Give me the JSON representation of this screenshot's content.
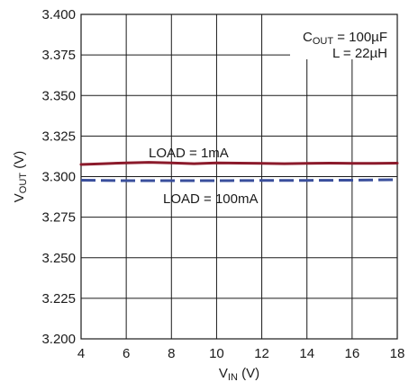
{
  "chart_data": {
    "type": "line",
    "title": "",
    "xlabel": {
      "main": "V",
      "sub": "IN",
      "unit": " (V)"
    },
    "ylabel": {
      "main": "V",
      "sub": "OUT",
      "unit": " (V)"
    },
    "xlim": [
      4,
      18
    ],
    "ylim": [
      3.2,
      3.4
    ],
    "xticks": [
      4,
      6,
      8,
      10,
      12,
      14,
      16,
      18
    ],
    "xtick_labels": [
      "4",
      "6",
      "8",
      "10",
      "12",
      "14",
      "16",
      "18"
    ],
    "yticks": [
      3.2,
      3.225,
      3.25,
      3.275,
      3.3,
      3.325,
      3.35,
      3.375,
      3.4
    ],
    "ytick_labels": [
      "3.200",
      "3.225",
      "3.250",
      "3.275",
      "3.300",
      "3.325",
      "3.350",
      "3.375",
      "3.400"
    ],
    "grid": true,
    "conditions": {
      "cout": {
        "main": "C",
        "sub": "OUT",
        "value": " = 100µF"
      },
      "inductor": "L = 22µH"
    },
    "series": [
      {
        "name": "LOAD = 1mA",
        "color": "#8b1a2b",
        "style": "solid",
        "x": [
          4,
          5,
          6,
          7,
          8,
          9,
          10,
          11,
          12,
          13,
          14,
          15,
          16,
          17,
          18
        ],
        "y": [
          3.3075,
          3.308,
          3.3085,
          3.3088,
          3.3085,
          3.308,
          3.3085,
          3.3083,
          3.3082,
          3.308,
          3.3082,
          3.3083,
          3.3082,
          3.3082,
          3.3083
        ]
      },
      {
        "name": "LOAD = 100mA",
        "color": "#3a4f9c",
        "style": "dashed",
        "x": [
          4,
          6,
          8,
          10,
          12,
          14,
          16,
          18
        ],
        "y": [
          3.2978,
          3.2975,
          3.2975,
          3.2975,
          3.2976,
          3.2977,
          3.2978,
          3.2981
        ]
      }
    ]
  }
}
